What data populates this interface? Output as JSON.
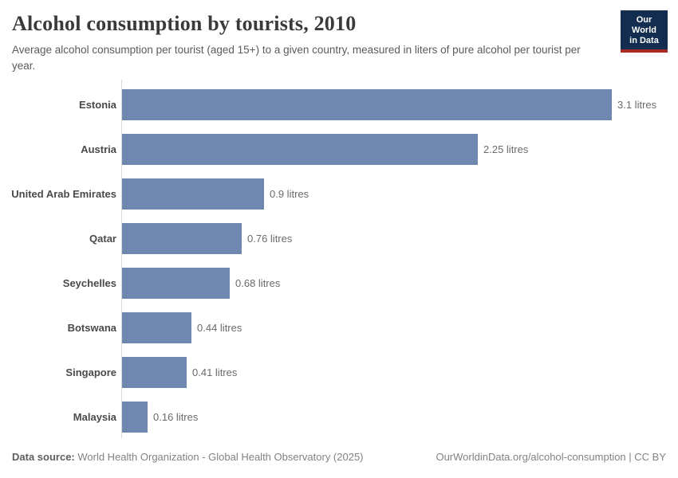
{
  "header": {
    "title": "Alcohol consumption by tourists, 2010",
    "subtitle": "Average alcohol consumption per tourist (aged 15+) to a given country, measured in liters of pure alcohol per tourist per year.",
    "logo": {
      "line1": "Our World",
      "line2": "in Data"
    }
  },
  "chart_data": {
    "type": "bar",
    "orientation": "horizontal",
    "title": "Alcohol consumption by tourists, 2010",
    "categories": [
      "Estonia",
      "Austria",
      "United Arab Emirates",
      "Qatar",
      "Seychelles",
      "Botswana",
      "Singapore",
      "Malaysia"
    ],
    "values": [
      3.1,
      2.25,
      0.9,
      0.76,
      0.68,
      0.44,
      0.41,
      0.16
    ],
    "value_labels": [
      "3.1 litres",
      "2.25 litres",
      "0.9 litres",
      "0.76 litres",
      "0.68 litres",
      "0.44 litres",
      "0.41 litres",
      "0.16 litres"
    ],
    "unit": "litres",
    "xlabel": "",
    "ylabel": "",
    "xlim": [
      0,
      3.1
    ],
    "grid": false,
    "legend": false
  },
  "footer": {
    "source_label": "Data source:",
    "source_text": " World Health Organization - Global Health Observatory (2025)",
    "link_text": "OurWorldinData.org/alcohol-consumption | CC BY"
  },
  "colors": {
    "bar": "#6e88b0",
    "axis_line": "#dadada",
    "logo_bg": "#122d50",
    "logo_stripe": "#a82b23"
  }
}
